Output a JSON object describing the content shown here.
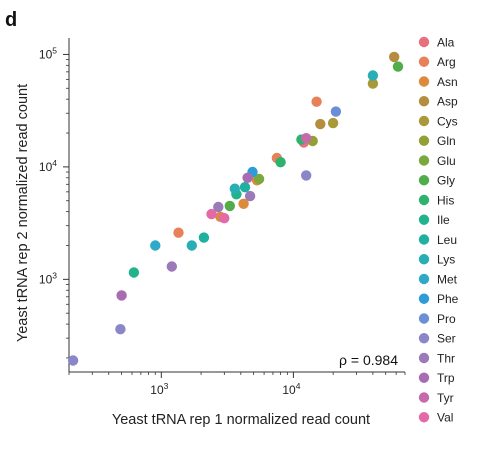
{
  "figure": {
    "panel_label": "d"
  },
  "chart_data": {
    "type": "scatter",
    "xlabel": "Yeast tRNA rep 1 normalized read count",
    "ylabel": "Yeast tRNA rep 2 normalized read count",
    "xscale": "log",
    "yscale": "log",
    "xlim": [
      200,
      70000
    ],
    "ylim": [
      150,
      140000
    ],
    "xticks": [
      {
        "value": 1000,
        "base": "10",
        "exp": "3"
      },
      {
        "value": 10000,
        "base": "10",
        "exp": "4"
      }
    ],
    "yticks": [
      {
        "value": 1000,
        "base": "10",
        "exp": "3"
      },
      {
        "value": 10000,
        "base": "10",
        "exp": "4"
      },
      {
        "value": 100000,
        "base": "10",
        "exp": "5"
      }
    ],
    "annotation": "ρ = 0.984",
    "grid": false,
    "legend_position": "right",
    "series": [
      {
        "name": "Ala",
        "color": "#e8707e",
        "points": [
          [
            12000,
            16500
          ]
        ]
      },
      {
        "name": "Arg",
        "color": "#e8805a",
        "points": [
          [
            15000,
            38000
          ],
          [
            7500,
            12000
          ],
          [
            1350,
            2600
          ]
        ]
      },
      {
        "name": "Asn",
        "color": "#dc8a3c",
        "points": [
          [
            5300,
            7600
          ],
          [
            4200,
            4700
          ],
          [
            2800,
            3600
          ]
        ]
      },
      {
        "name": "Asp",
        "color": "#b58d3e",
        "points": [
          [
            58000,
            95000
          ],
          [
            16000,
            24000
          ]
        ]
      },
      {
        "name": "Cys",
        "color": "#a89a38",
        "points": [
          [
            40000,
            55000
          ],
          [
            20000,
            24500
          ]
        ]
      },
      {
        "name": "Gln",
        "color": "#93a038",
        "points": [
          [
            14000,
            17000
          ]
        ]
      },
      {
        "name": "Glu",
        "color": "#7aa83c",
        "points": [
          [
            5500,
            7800
          ]
        ]
      },
      {
        "name": "Gly",
        "color": "#50ad4a",
        "points": [
          [
            62000,
            78000
          ],
          [
            3300,
            4500
          ]
        ]
      },
      {
        "name": "His",
        "color": "#2eb36e",
        "points": [
          [
            8000,
            11000
          ],
          [
            11500,
            17500
          ]
        ]
      },
      {
        "name": "Ile",
        "color": "#22b38c",
        "points": [
          [
            3700,
            5700
          ],
          [
            620,
            1150
          ]
        ]
      },
      {
        "name": "Leu",
        "color": "#20b0a0",
        "points": [
          [
            2100,
            2350
          ],
          [
            4300,
            6600
          ]
        ]
      },
      {
        "name": "Lys",
        "color": "#28aeb4",
        "points": [
          [
            40000,
            65000
          ],
          [
            3600,
            6400
          ],
          [
            1700,
            2000
          ]
        ]
      },
      {
        "name": "Met",
        "color": "#2eaac8",
        "points": [
          [
            900,
            2000
          ]
        ]
      },
      {
        "name": "Phe",
        "color": "#2e9cd8",
        "points": [
          [
            4900,
            9000
          ]
        ]
      },
      {
        "name": "Pro",
        "color": "#6a8fd6",
        "points": [
          [
            21000,
            31000
          ]
        ]
      },
      {
        "name": "Ser",
        "color": "#8a86c8",
        "points": [
          [
            12500,
            8400
          ],
          [
            490,
            360
          ],
          [
            215,
            190
          ]
        ]
      },
      {
        "name": "Thr",
        "color": "#9a7ab8",
        "points": [
          [
            1200,
            1300
          ],
          [
            2700,
            4400
          ],
          [
            4700,
            5500
          ]
        ]
      },
      {
        "name": "Trp",
        "color": "#a96cb4",
        "points": [
          [
            500,
            720
          ],
          [
            4500,
            8000
          ]
        ]
      },
      {
        "name": "Tyr",
        "color": "#c76aaa",
        "points": [
          [
            12500,
            18000
          ]
        ]
      },
      {
        "name": "Val",
        "color": "#e36aa6",
        "points": [
          [
            2400,
            3800
          ],
          [
            3000,
            3500
          ]
        ]
      }
    ]
  }
}
